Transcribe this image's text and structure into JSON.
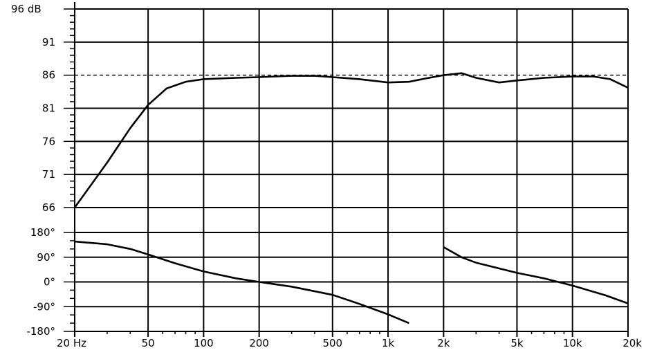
{
  "chart_data": {
    "type": "line",
    "title": "",
    "xlabel": "",
    "ylabel": "",
    "x_scale": "log",
    "xlim": [
      20,
      20000
    ],
    "grid": true,
    "x_ticks": [
      20,
      50,
      100,
      200,
      500,
      1000,
      2000,
      5000,
      10000,
      20000
    ],
    "x_tick_labels": [
      "20 Hz",
      "50",
      "100",
      "200",
      "500",
      "1k",
      "2k",
      "5k",
      "10k",
      "20k"
    ],
    "magnitude": {
      "ylim": [
        66,
        96
      ],
      "ticks": [
        66,
        71,
        76,
        81,
        86,
        91,
        96
      ],
      "tick_labels": [
        "66",
        "71",
        "76",
        "81",
        "86",
        "91",
        "96 dB"
      ],
      "reference_level": 86,
      "points": [
        [
          20,
          66.0
        ],
        [
          30,
          72.8
        ],
        [
          40,
          78.0
        ],
        [
          50,
          81.5
        ],
        [
          63,
          84.0
        ],
        [
          80,
          85.0
        ],
        [
          100,
          85.4
        ],
        [
          150,
          85.6
        ],
        [
          200,
          85.7
        ],
        [
          300,
          85.9
        ],
        [
          400,
          85.9
        ],
        [
          500,
          85.7
        ],
        [
          700,
          85.4
        ],
        [
          1000,
          84.9
        ],
        [
          1300,
          85.0
        ],
        [
          1600,
          85.5
        ],
        [
          2000,
          86.0
        ],
        [
          2500,
          86.3
        ],
        [
          3000,
          85.6
        ],
        [
          4000,
          84.9
        ],
        [
          5000,
          85.2
        ],
        [
          7000,
          85.6
        ],
        [
          10000,
          85.8
        ],
        [
          13000,
          85.8
        ],
        [
          16000,
          85.4
        ],
        [
          20000,
          84.1
        ]
      ]
    },
    "phase": {
      "ylim": [
        -180,
        180
      ],
      "ticks": [
        -180,
        -90,
        0,
        90,
        180
      ],
      "tick_labels": [
        "-180°",
        "-90°",
        "0°",
        "90°",
        "180°"
      ],
      "segments": [
        [
          [
            20,
            147
          ],
          [
            30,
            137
          ],
          [
            40,
            120
          ],
          [
            50,
            100
          ],
          [
            70,
            68
          ],
          [
            100,
            38
          ],
          [
            150,
            13
          ],
          [
            200,
            0
          ],
          [
            300,
            -17
          ],
          [
            500,
            -47
          ],
          [
            700,
            -80
          ],
          [
            1000,
            -118
          ],
          [
            1300,
            -150
          ]
        ],
        [
          [
            2000,
            127
          ],
          [
            2500,
            90
          ],
          [
            3000,
            70
          ],
          [
            5000,
            33
          ],
          [
            7000,
            13
          ],
          [
            10000,
            -13
          ],
          [
            15000,
            -48
          ],
          [
            20000,
            -78
          ]
        ]
      ]
    }
  }
}
